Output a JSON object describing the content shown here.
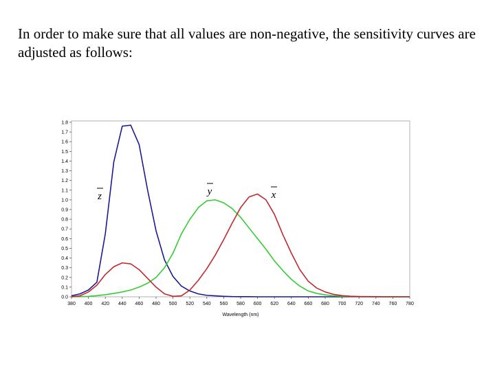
{
  "slide": {
    "text": "In order to make sure that all values are non-negative, the sensitivity curves are adjusted as follows:"
  },
  "chart_data": {
    "type": "line",
    "title": "",
    "xlabel": "Wavelength (nm)",
    "ylabel": "",
    "xlim": [
      380,
      780
    ],
    "ylim": [
      0,
      1.8
    ],
    "xticks": [
      380,
      400,
      420,
      440,
      460,
      480,
      500,
      520,
      540,
      560,
      580,
      600,
      620,
      640,
      660,
      680,
      700,
      720,
      740,
      760,
      780
    ],
    "yticks": [
      0.0,
      0.1,
      0.2,
      0.3,
      0.4,
      0.5,
      0.6,
      0.7,
      0.8,
      0.9,
      1.0,
      1.1,
      1.2,
      1.3,
      1.4,
      1.5,
      1.6,
      1.7,
      1.8
    ],
    "grid": false,
    "curve_labels": [
      {
        "text": "z",
        "series": 0
      },
      {
        "text": "y",
        "series": 1
      },
      {
        "text": "x",
        "series": 2
      }
    ],
    "x": [
      380,
      390,
      400,
      410,
      420,
      430,
      440,
      450,
      460,
      470,
      480,
      490,
      500,
      510,
      520,
      530,
      540,
      550,
      560,
      570,
      580,
      590,
      600,
      610,
      620,
      630,
      640,
      650,
      660,
      670,
      680,
      690,
      700,
      710,
      720,
      730,
      740,
      750,
      760,
      770,
      780
    ],
    "series": [
      {
        "color": "#1a1a8f",
        "values": [
          0.01,
          0.03,
          0.07,
          0.15,
          0.65,
          1.39,
          1.76,
          1.77,
          1.57,
          1.1,
          0.68,
          0.38,
          0.21,
          0.11,
          0.06,
          0.03,
          0.015,
          0.01,
          0.005,
          0.002,
          0.001,
          0.001,
          0.0,
          0.0,
          0.0,
          0.0,
          0.0,
          0.0,
          0.0,
          0.0,
          0.0,
          0.0,
          0.0,
          0.0,
          0.0,
          0.0,
          0.0,
          0.0,
          0.0,
          0.0,
          0.0
        ]
      },
      {
        "color": "#33cc33",
        "values": [
          0.0,
          0.001,
          0.004,
          0.012,
          0.022,
          0.035,
          0.05,
          0.07,
          0.1,
          0.14,
          0.2,
          0.3,
          0.45,
          0.65,
          0.8,
          0.92,
          0.99,
          1.0,
          0.97,
          0.91,
          0.82,
          0.71,
          0.6,
          0.49,
          0.37,
          0.27,
          0.18,
          0.11,
          0.06,
          0.035,
          0.02,
          0.01,
          0.005,
          0.003,
          0.002,
          0.001,
          0.0,
          0.0,
          0.0,
          0.0,
          0.0
        ]
      },
      {
        "color": "#c0282d",
        "values": [
          0.0,
          0.01,
          0.05,
          0.12,
          0.23,
          0.31,
          0.35,
          0.34,
          0.28,
          0.19,
          0.1,
          0.03,
          0.005,
          0.01,
          0.07,
          0.17,
          0.29,
          0.43,
          0.59,
          0.76,
          0.92,
          1.03,
          1.06,
          1.0,
          0.85,
          0.64,
          0.45,
          0.28,
          0.16,
          0.09,
          0.05,
          0.025,
          0.012,
          0.006,
          0.003,
          0.002,
          0.001,
          0.0,
          0.0,
          0.0,
          0.0
        ]
      }
    ]
  }
}
